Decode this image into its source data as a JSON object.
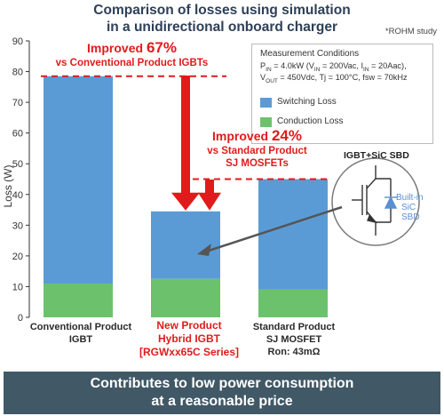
{
  "title_line1": "Comparison of losses using simulation",
  "title_line2": "in a unidirectional onboard charger",
  "source_note": "*ROHM study",
  "conditions": {
    "heading": "Measurement Conditions",
    "line1": "P<sub>IN</sub> = 4.0kW (V<sub>IN</sub> = 200Vac, I<sub>IN</sub> = 20Aac),",
    "line2": "V<sub>OUT</sub> = 450Vdc, Tj = 100°C, fsw = 70kHz"
  },
  "annotations": {
    "improved67_a": "Improved ",
    "improved67_b": "67%",
    "improved67_c": "vs Conventional Product IGBTs",
    "improved24_a": "Improved ",
    "improved24_b": "24%",
    "improved24_c": "vs Standard Product",
    "improved24_d": "SJ MOSFETs"
  },
  "inset": {
    "title": "IGBT+SiC SBD",
    "builtin_l1": "Built-in",
    "builtin_l2": "SiC",
    "builtin_l3": "SBD"
  },
  "categories": {
    "c1_l1": "Conventional Product",
    "c1_l2": "IGBT",
    "c2_l1": "New Product",
    "c2_l2": "Hybrid IGBT",
    "c2_l3": "[RGWxx65C Series]",
    "c3_l1": "Standard Product",
    "c3_l2": "SJ MOSFET",
    "c3_l3": "Ron: 43mΩ"
  },
  "footer_line1": "Contributes to low power consumption",
  "footer_line2": "at a reasonable price",
  "colors": {
    "switching": "#5b9bd5",
    "conduction": "#6cc26c",
    "highlight": "#e01b1b",
    "footer": "#415866"
  },
  "chart_data": {
    "type": "bar",
    "stacked": true,
    "categories": [
      "Conventional Product IGBT",
      "New Product Hybrid IGBT [RGWxx65C Series]",
      "Standard Product SJ MOSFET Ron: 43mΩ"
    ],
    "series": [
      {
        "name": "Conduction Loss",
        "values": [
          11,
          12.5,
          9
        ]
      },
      {
        "name": "Switching Loss",
        "values": [
          67.5,
          22,
          36
        ]
      }
    ],
    "totals": [
      78.5,
      34.5,
      45
    ],
    "ylabel": "Loss (W)",
    "ylim": [
      0,
      90
    ],
    "yticks": [
      0,
      10,
      20,
      30,
      40,
      50,
      60,
      70,
      80,
      90
    ],
    "legend": [
      "Switching Loss",
      "Conduction Loss"
    ],
    "legend_position": "top-right",
    "grid": false
  }
}
